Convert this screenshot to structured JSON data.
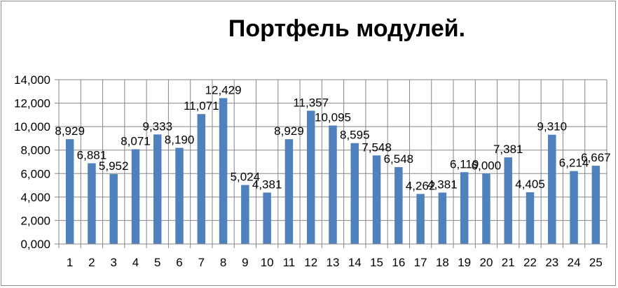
{
  "chart_data": {
    "type": "bar",
    "title": "Портфель модулей.",
    "xlabel": "",
    "ylabel": "",
    "categories": [
      "1",
      "2",
      "3",
      "4",
      "5",
      "6",
      "7",
      "8",
      "9",
      "10",
      "11",
      "12",
      "13",
      "14",
      "15",
      "16",
      "17",
      "18",
      "19",
      "20",
      "21",
      "22",
      "23",
      "24",
      "25"
    ],
    "values": [
      8.929,
      6.881,
      5.952,
      8.071,
      9.333,
      8.19,
      11.071,
      12.429,
      5.024,
      4.381,
      8.929,
      11.357,
      10.095,
      8.595,
      7.548,
      6.548,
      4.262,
      4.381,
      6.119,
      6.0,
      7.381,
      4.405,
      9.31,
      6.214,
      6.667
    ],
    "value_labels": [
      "8,929",
      "6,881",
      "5,952",
      "8,071",
      "9,333",
      "8,190",
      "11,071",
      "12,429",
      "5,024",
      "4,381",
      "8,929",
      "11,357",
      "10,095",
      "8,595",
      "7,548",
      "6,548",
      "4,262",
      "4,381",
      "6,119",
      "6,000",
      "7,381",
      "4,405",
      "9,310",
      "6,214",
      "6,667"
    ],
    "y_tick_labels": [
      "0,000",
      "2,000",
      "4,000",
      "6,000",
      "8,000",
      "10,000",
      "12,000",
      "14,000"
    ],
    "ylim": [
      0,
      14
    ],
    "y_tick_step": 2,
    "grid": true,
    "legend": "none",
    "bar_color": "#4f81bd",
    "grid_color": "#868686"
  }
}
